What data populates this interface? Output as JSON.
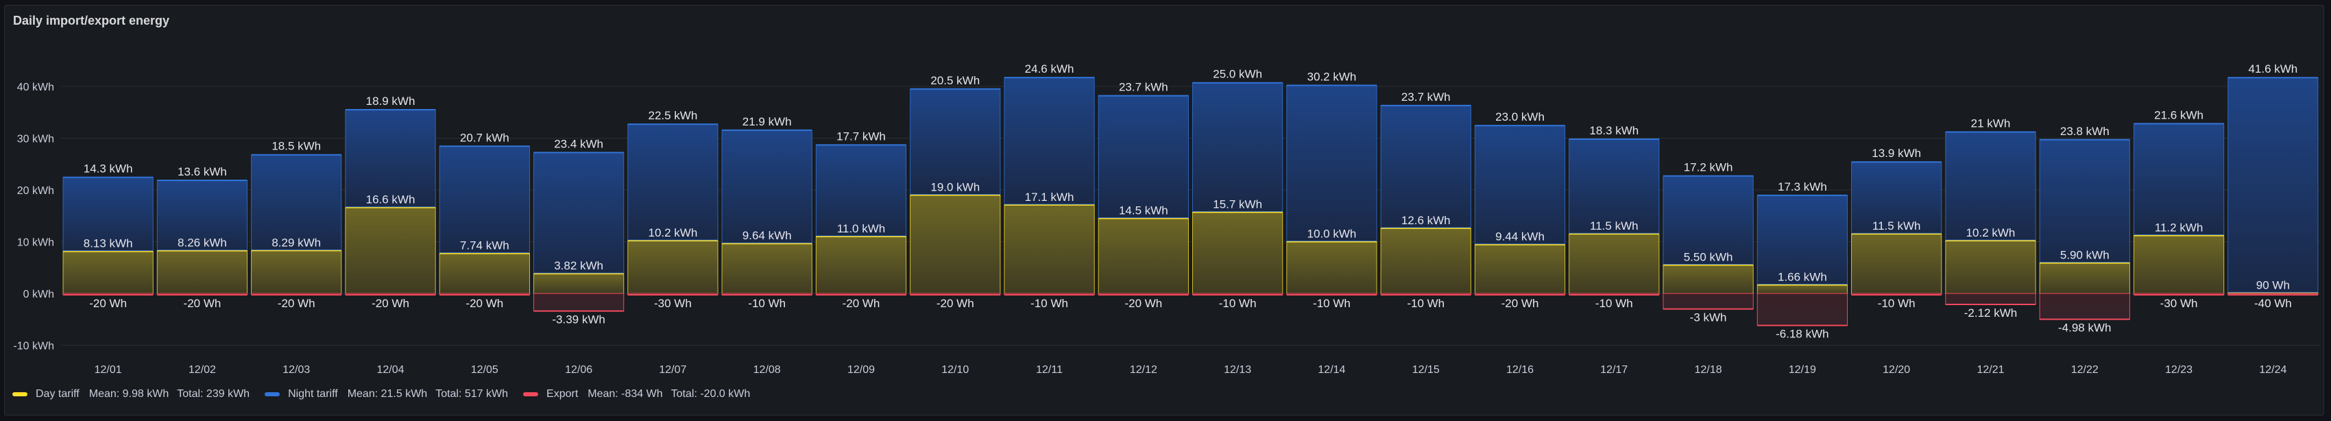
{
  "panel": {
    "title": "Daily import/export energy"
  },
  "chart_data": {
    "type": "bar",
    "stacked": true,
    "title": "Daily import/export energy",
    "xlabel": "",
    "ylabel": "",
    "ylim": [
      -10,
      45
    ],
    "yticks": [
      {
        "value": 40,
        "label": "40 kWh"
      },
      {
        "value": 30,
        "label": "30 kWh"
      },
      {
        "value": 20,
        "label": "20 kWh"
      },
      {
        "value": 10,
        "label": "10 kWh"
      },
      {
        "value": 0,
        "label": "0 kWh"
      },
      {
        "value": -10,
        "label": "-10 kWh"
      }
    ],
    "grid": true,
    "legend_placement": "bottom-left",
    "categories": [
      "12/01",
      "12/02",
      "12/03",
      "12/04",
      "12/05",
      "12/06",
      "12/07",
      "12/08",
      "12/09",
      "12/10",
      "12/11",
      "12/12",
      "12/13",
      "12/14",
      "12/15",
      "12/16",
      "12/17",
      "12/18",
      "12/19",
      "12/20",
      "12/21",
      "12/22",
      "12/23",
      "12/24"
    ],
    "series": [
      {
        "name": "Day tariff",
        "color": "#fade2a",
        "fill_top": "#6e6726",
        "fill_bottom": "#3e3b22",
        "values": [
          8.13,
          8.26,
          8.29,
          16.6,
          7.74,
          3.82,
          10.2,
          9.64,
          11.0,
          19.0,
          17.1,
          14.5,
          15.7,
          10.0,
          12.6,
          9.44,
          11.5,
          5.5,
          1.66,
          11.5,
          10.2,
          5.9,
          11.2,
          0.09
        ],
        "labels": [
          "8.13 kWh",
          "8.26 kWh",
          "8.29 kWh",
          "16.6 kWh",
          "7.74 kWh",
          "3.82 kWh",
          "10.2 kWh",
          "9.64 kWh",
          "11.0 kWh",
          "19.0 kWh",
          "17.1 kWh",
          "14.5 kWh",
          "15.7 kWh",
          "10.0 kWh",
          "12.6 kWh",
          "9.44 kWh",
          "11.5 kWh",
          "5.50 kWh",
          "1.66 kWh",
          "11.5 kWh",
          "10.2 kWh",
          "5.90 kWh",
          "11.2 kWh",
          "90 Wh"
        ],
        "legend": {
          "mean": "Mean: 9.98 kWh",
          "total": "Total: 239 kWh"
        }
      },
      {
        "name": "Night tariff",
        "color": "#3274d9",
        "fill_top": "#1f4588",
        "fill_bottom": "#1a2846",
        "values": [
          14.3,
          13.6,
          18.5,
          18.9,
          20.7,
          23.4,
          22.5,
          21.9,
          17.7,
          20.5,
          24.6,
          23.7,
          25.0,
          30.2,
          23.7,
          23.0,
          18.3,
          17.2,
          17.3,
          13.9,
          21,
          23.8,
          21.6,
          41.6
        ],
        "labels": [
          "14.3 kWh",
          "13.6 kWh",
          "18.5 kWh",
          "18.9 kWh",
          "20.7 kWh",
          "23.4 kWh",
          "22.5 kWh",
          "21.9 kWh",
          "17.7 kWh",
          "20.5 kWh",
          "24.6 kWh",
          "23.7 kWh",
          "25.0 kWh",
          "30.2 kWh",
          "23.7 kWh",
          "23.0 kWh",
          "18.3 kWh",
          "17.2 kWh",
          "17.3 kWh",
          "13.9 kWh",
          "21 kWh",
          "23.8 kWh",
          "21.6 kWh",
          "41.6 kWh"
        ],
        "legend": {
          "mean": "Mean: 21.5 kWh",
          "total": "Total: 517 kWh"
        }
      },
      {
        "name": "Export",
        "color": "#f2495c",
        "fill_top": "#3a2127",
        "fill_bottom": "#33222a",
        "values": [
          -0.02,
          -0.02,
          -0.02,
          -0.02,
          -0.02,
          -3.39,
          -0.03,
          -0.01,
          -0.02,
          -0.02,
          -0.01,
          -0.02,
          -0.01,
          -0.01,
          -0.01,
          -0.02,
          -0.01,
          -3,
          -6.18,
          -0.01,
          -2.12,
          -4.98,
          -0.03,
          -0.04
        ],
        "labels": [
          "-20 Wh",
          "-20 Wh",
          "-20 Wh",
          "-20 Wh",
          "-20 Wh",
          "-3.39 kWh",
          "-30 Wh",
          "-10 Wh",
          "-20 Wh",
          "-20 Wh",
          "-10 Wh",
          "-20 Wh",
          "-10 Wh",
          "-10 Wh",
          "-10 Wh",
          "-20 Wh",
          "-10 Wh",
          "-3 kWh",
          "-6.18 kWh",
          "-10 Wh",
          "-2.12 kWh",
          "-4.98 kWh",
          "-30 Wh",
          "-40 Wh"
        ],
        "legend": {
          "mean": "Mean: -834 Wh",
          "total": "Total: -20.0 kWh"
        }
      }
    ]
  }
}
